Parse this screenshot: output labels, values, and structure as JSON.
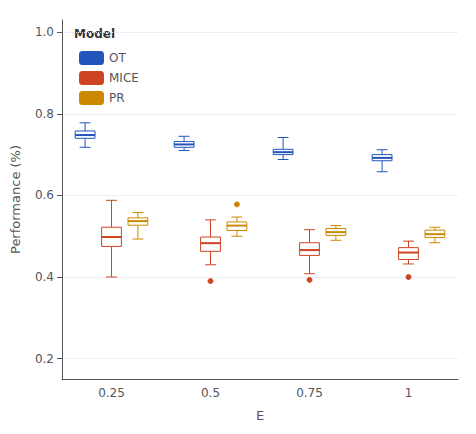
{
  "chart_data": {
    "type": "boxplot",
    "xlabel": "E",
    "ylabel": "Performance (%)",
    "categories": [
      "0.25",
      "0.5",
      "0.75",
      "1"
    ],
    "ylim": [
      0.15,
      1.03
    ],
    "yticks": [
      0.2,
      0.4,
      0.6,
      0.8,
      {
        "value": 1.0,
        "label": "1.0"
      }
    ],
    "grid": true,
    "legend": "upper left",
    "legend_title": "Model",
    "series": [
      {
        "name": "OT",
        "color": "#2255bb",
        "values": [
          [
            0.718,
            0.74,
            0.748,
            0.758,
            0.778
          ],
          [
            0.71,
            0.718,
            0.725,
            0.732,
            0.745
          ],
          [
            0.688,
            0.7,
            0.706,
            0.713,
            0.742
          ],
          [
            0.658,
            0.685,
            0.692,
            0.7,
            0.712
          ]
        ],
        "outliers": [
          [],
          [],
          [],
          []
        ]
      },
      {
        "name": "MICE",
        "color": "#cc4422",
        "values": [
          [
            0.4,
            0.475,
            0.498,
            0.522,
            0.588
          ],
          [
            0.43,
            0.463,
            0.483,
            0.498,
            0.54
          ],
          [
            0.408,
            0.453,
            0.466,
            0.484,
            0.516
          ],
          [
            0.432,
            0.443,
            0.46,
            0.472,
            0.488
          ]
        ],
        "outliers": [
          [],
          [
            0.39
          ],
          [
            0.393
          ],
          [
            0.4
          ]
        ]
      },
      {
        "name": "PR",
        "color": "#cc8800",
        "values": [
          [
            0.493,
            0.527,
            0.537,
            0.545,
            0.558
          ],
          [
            0.5,
            0.514,
            0.526,
            0.535,
            0.547
          ],
          [
            0.49,
            0.502,
            0.51,
            0.519,
            0.526
          ],
          [
            0.484,
            0.497,
            0.505,
            0.515,
            0.522
          ]
        ],
        "outliers": [
          [],
          [
            0.578
          ],
          [],
          []
        ]
      }
    ]
  }
}
